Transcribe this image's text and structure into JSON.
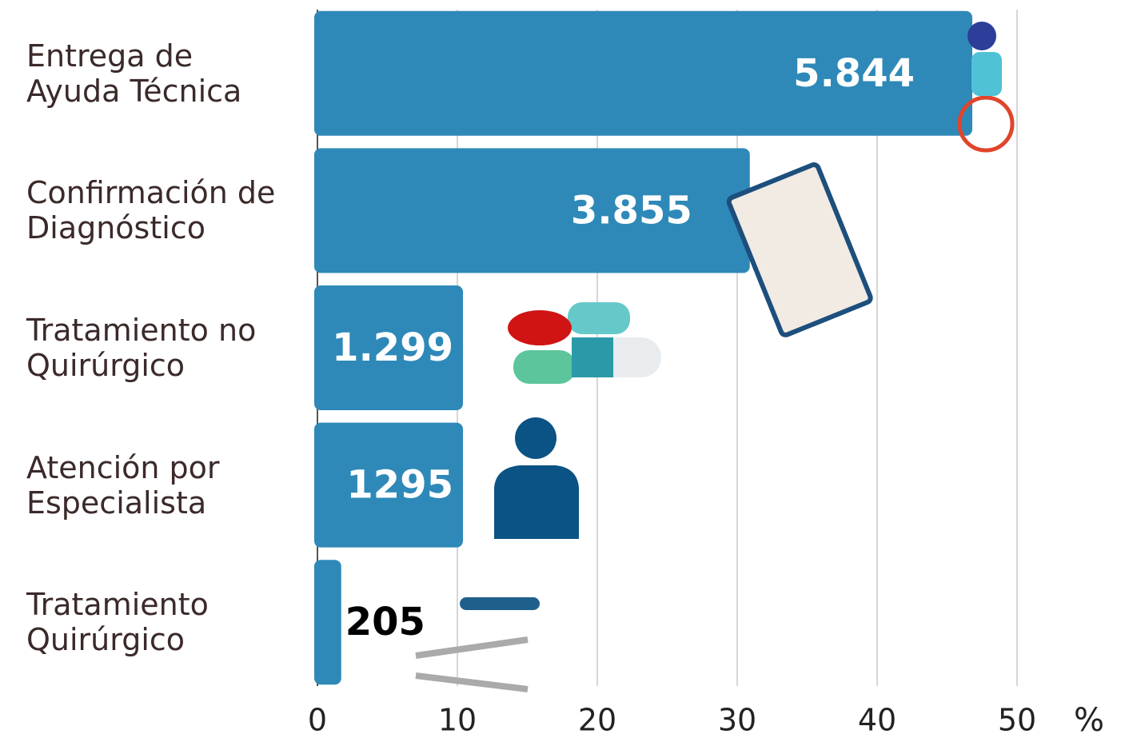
{
  "chart_data": {
    "type": "bar",
    "orientation": "horizontal",
    "categories": [
      "Entrega de\nAyuda Técnica",
      "Confirmación de\nDiagnóstico",
      "Tratamiento no\nQuirúrgico",
      "Atención por\nEspecialista",
      "Tratamiento\nQuirúrgico"
    ],
    "values": [
      46.8,
      30.9,
      10.4,
      10.4,
      1.7
    ],
    "annotations": [
      "5.844",
      "3.855",
      "1.299",
      "1295",
      "205"
    ],
    "color": "#2e89b8",
    "x_label": "%",
    "xlim": [
      0,
      50
    ],
    "xticks": [
      0,
      10,
      20,
      30,
      40,
      50
    ],
    "grid": true
  }
}
